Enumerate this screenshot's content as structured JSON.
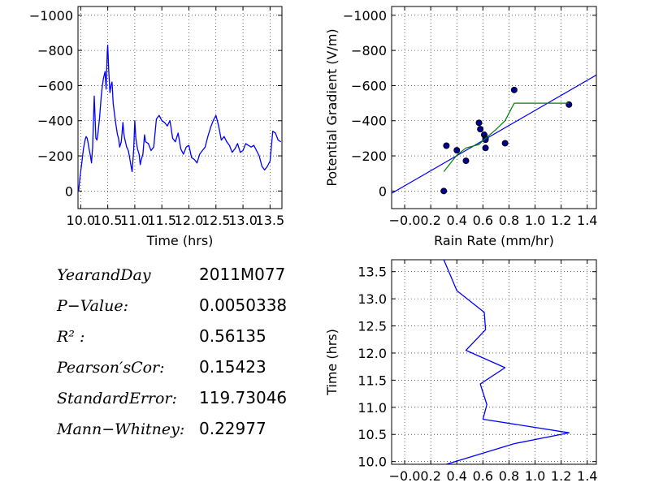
{
  "chart_data": [
    {
      "id": "pg_time",
      "type": "line",
      "title": "",
      "xlabel": "Time (hrs)",
      "ylabel": "",
      "xlim": [
        9.95,
        13.72
      ],
      "ylim": [
        100,
        -1050
      ],
      "x_ticks": [
        "10.0",
        "10.5",
        "11.0",
        "11.5",
        "12.0",
        "12.5",
        "13.0",
        "13.5"
      ],
      "y_ticks": [
        "−1000",
        "−800",
        "−600",
        "−400",
        "−200",
        "0"
      ],
      "grid": true,
      "series": [
        {
          "color": "#0000ff",
          "x": [
            9.96,
            9.99,
            10.02,
            10.05,
            10.08,
            10.1,
            10.12,
            10.14,
            10.16,
            10.18,
            10.2,
            10.22,
            10.25,
            10.28,
            10.3,
            10.32,
            10.35,
            10.38,
            10.4,
            10.42,
            10.45,
            10.47,
            10.49,
            10.5,
            10.52,
            10.54,
            10.56,
            10.58,
            10.6,
            10.62,
            10.65,
            10.68,
            10.7,
            10.72,
            10.75,
            10.78,
            10.8,
            10.82,
            10.85,
            10.88,
            10.9,
            10.92,
            10.95,
            10.98,
            11.0,
            11.02,
            11.05,
            11.08,
            11.1,
            11.12,
            11.15,
            11.18,
            11.2,
            11.25,
            11.3,
            11.35,
            11.4,
            11.45,
            11.5,
            11.55,
            11.6,
            11.65,
            11.7,
            11.75,
            11.8,
            11.85,
            11.9,
            11.95,
            12.0,
            12.05,
            12.1,
            12.15,
            12.2,
            12.25,
            12.3,
            12.35,
            12.4,
            12.45,
            12.5,
            12.55,
            12.6,
            12.65,
            12.7,
            12.75,
            12.8,
            12.85,
            12.9,
            12.95,
            13.0,
            13.05,
            13.1,
            13.15,
            13.2,
            13.25,
            13.3,
            13.35,
            13.4,
            13.45,
            13.5,
            13.55,
            13.6,
            13.65,
            13.7
          ],
          "y": [
            0,
            -90,
            -160,
            -240,
            -290,
            -310,
            -300,
            -270,
            -230,
            -200,
            -160,
            -250,
            -540,
            -300,
            -290,
            -330,
            -420,
            -540,
            -600,
            -640,
            -680,
            -580,
            -790,
            -830,
            -680,
            -560,
            -600,
            -620,
            -500,
            -450,
            -380,
            -320,
            -300,
            -250,
            -280,
            -390,
            -320,
            -290,
            -250,
            -230,
            -200,
            -160,
            -110,
            -240,
            -400,
            -300,
            -240,
            -210,
            -150,
            -180,
            -210,
            -320,
            -280,
            -270,
            -230,
            -250,
            -410,
            -430,
            -400,
            -390,
            -370,
            -400,
            -300,
            -280,
            -330,
            -240,
            -210,
            -250,
            -260,
            -190,
            -180,
            -160,
            -210,
            -230,
            -250,
            -310,
            -360,
            -400,
            -430,
            -370,
            -290,
            -310,
            -280,
            -260,
            -220,
            -240,
            -270,
            -220,
            -230,
            -270,
            -260,
            -250,
            -260,
            -230,
            -200,
            -140,
            -120,
            -140,
            -170,
            -340,
            -330,
            -290,
            -280
          ]
        }
      ]
    },
    {
      "id": "pg_rain",
      "type": "scatter",
      "title": "",
      "xlabel": "Rain Rate (mm/hr)",
      "ylabel": "Potential Gradient (V/m)",
      "xlim": [
        -0.1,
        1.47
      ],
      "ylim": [
        100,
        -1050
      ],
      "x_ticks": [
        "−0.0",
        "0.2",
        "0.4",
        "0.6",
        "0.8",
        "1.0",
        "1.2",
        "1.4"
      ],
      "y_ticks": [
        "−1000",
        "−800",
        "−600",
        "−400",
        "−200",
        "0"
      ],
      "grid": true,
      "series": [
        {
          "kind": "points",
          "color": "#00008b",
          "x": [
            0.3,
            0.32,
            0.4,
            0.47,
            0.57,
            0.58,
            0.61,
            0.62,
            0.62,
            0.62,
            0.77,
            0.84,
            1.26
          ],
          "y": [
            0,
            -258,
            -232,
            -172,
            -388,
            -352,
            -320,
            -300,
            -292,
            -245,
            -272,
            -575,
            -492
          ]
        },
        {
          "kind": "line",
          "color": "#0000ff",
          "x": [
            -0.1,
            1.47
          ],
          "y": [
            13,
            -660
          ]
        },
        {
          "kind": "line",
          "color": "#008000",
          "x": [
            0.3,
            0.4,
            0.47,
            0.57,
            0.62,
            0.7,
            0.77,
            0.84,
            1.26
          ],
          "y": [
            -110,
            -205,
            -245,
            -265,
            -300,
            -350,
            -400,
            -500,
            -500
          ]
        }
      ]
    },
    {
      "id": "time_rain",
      "type": "line",
      "title": "",
      "xlabel": "",
      "ylabel": "Time (hrs)",
      "xlim": [
        -0.1,
        1.47
      ],
      "ylim": [
        9.95,
        13.72
      ],
      "x_ticks": [
        "−0.0",
        "0.2",
        "0.4",
        "0.6",
        "0.8",
        "1.0",
        "1.2",
        "1.4"
      ],
      "y_ticks": [
        "10.0",
        "10.5",
        "11.0",
        "11.5",
        "12.0",
        "12.5",
        "13.0",
        "13.5"
      ],
      "grid": true,
      "series": [
        {
          "color": "#0000ff",
          "x": [
            0.32,
            0.84,
            1.26,
            0.6,
            0.63,
            0.58,
            0.77,
            0.47,
            0.62,
            0.61,
            0.4,
            0.3
          ],
          "y": [
            9.95,
            10.33,
            10.53,
            10.78,
            11.05,
            11.43,
            11.73,
            12.05,
            12.43,
            12.75,
            13.15,
            13.72
          ]
        }
      ]
    }
  ],
  "stats": [
    {
      "label": "YearandDay",
      "value": "2011M077"
    },
    {
      "label": "P−Value:",
      "value": "0.0050338"
    },
    {
      "label": "R² :",
      "value": "0.56135"
    },
    {
      "label": "Pearson′sCor:",
      "value": "0.15423"
    },
    {
      "label": "StandardError:",
      "value": "119.73046"
    },
    {
      "label": "Mann−Whitney:",
      "value": "0.22977"
    }
  ]
}
